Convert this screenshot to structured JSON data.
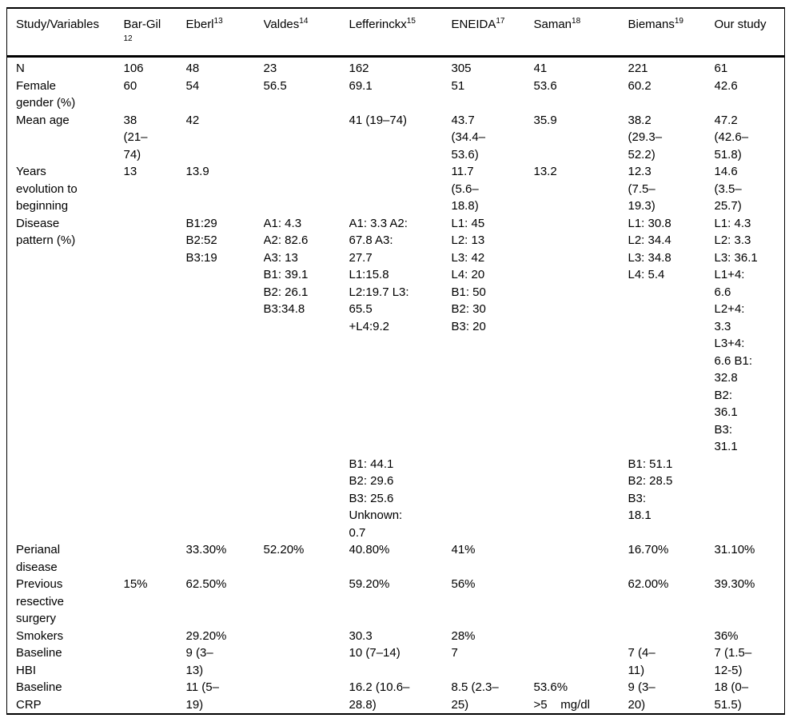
{
  "table": {
    "headers": [
      {
        "label": "Study/Variables",
        "sup": ""
      },
      {
        "label": "Bar-Gil",
        "sup": "12",
        "sup_on_new_line": true
      },
      {
        "label": "Eberl",
        "sup": "13"
      },
      {
        "label": "Valdes",
        "sup": "14"
      },
      {
        "label": "Lefferinckx",
        "sup": "15"
      },
      {
        "label": "ENEIDA",
        "sup": "17"
      },
      {
        "label": "Saman",
        "sup": "18"
      },
      {
        "label": "Biemans",
        "sup": "19"
      },
      {
        "label": "Our study",
        "sup": ""
      }
    ],
    "rows": [
      {
        "label": "N",
        "cells": [
          "106",
          "48",
          "23",
          "162",
          "305",
          "41",
          "221",
          "61"
        ]
      },
      {
        "label": "Female\ngender (%)",
        "cells": [
          "60",
          "54",
          "56.5",
          "69.1",
          "51",
          "53.6",
          "60.2",
          "42.6"
        ]
      },
      {
        "label": "Mean age",
        "cells": [
          "38\n(21–\n74)",
          "42",
          "",
          "41 (19–74)",
          "43.7\n(34.4–\n53.6)",
          "35.9",
          "38.2\n(29.3–\n52.2)",
          "47.2\n(42.6–\n51.8)"
        ]
      },
      {
        "label": "Years\nevolution to\nbeginning",
        "cells": [
          "13",
          "13.9",
          "",
          "",
          "11.7\n(5.6–\n18.8)",
          "13.2",
          "12.3\n(7.5–\n19.3)",
          "14.6\n(3.5–\n25.7)"
        ]
      },
      {
        "label": "Disease\npattern (%)",
        "cells": [
          "",
          "B1:29\nB2:52\nB3:19",
          "A1: 4.3\nA2: 82.6\nA3: 13\nB1: 39.1\nB2: 26.1\nB3:34.8",
          "A1: 3.3 A2:\n67.8 A3:\n27.7\nL1:15.8\nL2:19.7 L3:\n65.5\n+L4:9.2",
          "L1: 45\nL2: 13\nL3: 42\nL4: 20\nB1: 50\nB2: 30\nB3: 20",
          "",
          "L1: 30.8\nL2: 34.4\nL3: 34.8\nL4: 5.4",
          "L1: 4.3\nL2: 3.3\nL3: 36.1\nL1+4:\n6.6\nL2+4:\n3.3\nL3+4:\n6.6 B1:\n32.8\nB2:\n36.1\nB3:\n31.1"
        ]
      },
      {
        "label": "",
        "cells": [
          "",
          "",
          "",
          "B1: 44.1\nB2: 29.6\nB3: 25.6\nUnknown:\n0.7",
          "",
          "",
          "B1: 51.1\nB2: 28.5\nB3:\n18.1",
          ""
        ]
      },
      {
        "label": "Perianal\ndisease",
        "cells": [
          "",
          "33.30%",
          "52.20%",
          "40.80%",
          "41%",
          "",
          "16.70%",
          "31.10%"
        ]
      },
      {
        "label": "Previous\nresective\nsurgery",
        "cells": [
          "15%",
          "62.50%",
          "",
          "59.20%",
          "56%",
          "",
          "62.00%",
          "39.30%"
        ]
      },
      {
        "label": "Smokers",
        "cells": [
          "",
          "29.20%",
          "",
          "30.3",
          "28%",
          "",
          "",
          "36%"
        ]
      },
      {
        "label": "Baseline\nHBI",
        "cells": [
          "",
          "9 (3–\n13)",
          "",
          "10 (7–14)",
          "7",
          "",
          "7 (4–\n11)",
          "7 (1.5–\n12-5)"
        ]
      },
      {
        "label": "Baseline\nCRP",
        "cells": [
          "",
          "11 (5–\n19)",
          "",
          "16.2 (10.6–\n28.8)",
          "8.5 (2.3–\n25)",
          "53.6%\n>5    mg/dl",
          "9 (3–\n20)",
          "18 (0–\n51.5)"
        ]
      }
    ]
  }
}
